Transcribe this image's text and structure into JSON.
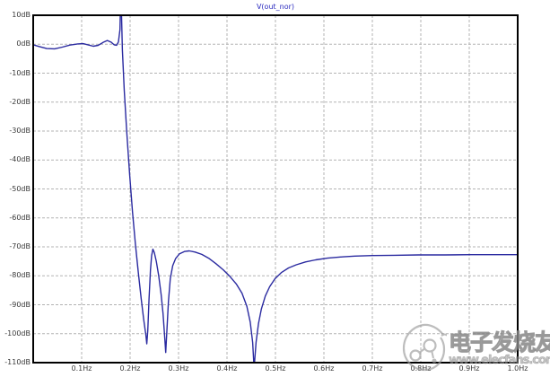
{
  "title": "V(out_nor)",
  "watermark": {
    "cn": "电子发烧友",
    "url": "www.elecfans.com",
    "logo": "elecfans-circle-logo",
    "color": "#999999"
  },
  "colors": {
    "curve": "#2a2aa0",
    "grid": "#b3b3b3",
    "frame": "#000000",
    "title": "#2a2abf",
    "tick_text": "#3a3a3a",
    "background": "#ffffff"
  },
  "chart_data": {
    "type": "line",
    "title": "V(out_nor)",
    "xlabel": "",
    "ylabel": "",
    "x_unit": "Hz",
    "y_unit": "dB",
    "xlim": [
      0.0,
      1.0
    ],
    "ylim": [
      -110,
      10
    ],
    "grid": true,
    "legend": "none",
    "x_tick_values": [
      0.1,
      0.2,
      0.3,
      0.4,
      0.5,
      0.6,
      0.7,
      0.8,
      0.9,
      1.0
    ],
    "x_tick_labels": [
      "0.1Hz",
      "0.2Hz",
      "0.3Hz",
      "0.4Hz",
      "0.5Hz",
      "0.6Hz",
      "0.7Hz",
      "0.8Hz",
      "0.9Hz",
      "1.0Hz"
    ],
    "y_tick_values": [
      10,
      0,
      -10,
      -20,
      -30,
      -40,
      -50,
      -60,
      -70,
      -80,
      -90,
      -100,
      -110
    ],
    "y_tick_labels": [
      "10dB",
      "0dB",
      "-10dB",
      "-20dB",
      "-30dB",
      "-40dB",
      "-50dB",
      "-60dB",
      "-70dB",
      "-80dB",
      "-90dB",
      "-100dB",
      "-110dB"
    ],
    "annotations": {
      "passband_ripple_db": 1.5,
      "peak_hz": 0.18,
      "notch_hz": [
        0.234,
        0.274,
        0.456
      ],
      "stopband_floor_db": -72.7
    },
    "series": [
      {
        "name": "V(out_nor)",
        "color": "#2a2aa0",
        "points": [
          [
            0.0,
            -0.2
          ],
          [
            0.012,
            -0.8
          ],
          [
            0.028,
            -1.5
          ],
          [
            0.044,
            -1.6
          ],
          [
            0.06,
            -1.0
          ],
          [
            0.076,
            -0.3
          ],
          [
            0.092,
            0.1
          ],
          [
            0.103,
            0.2
          ],
          [
            0.113,
            -0.2
          ],
          [
            0.124,
            -0.7
          ],
          [
            0.134,
            -0.4
          ],
          [
            0.144,
            0.6
          ],
          [
            0.153,
            1.3
          ],
          [
            0.161,
            0.7
          ],
          [
            0.167,
            -0.2
          ],
          [
            0.172,
            -0.4
          ],
          [
            0.176,
            0.8
          ],
          [
            0.179,
            5.0
          ],
          [
            0.18,
            12.0
          ],
          [
            0.182,
            12.0
          ],
          [
            0.184,
            -2.0
          ],
          [
            0.188,
            -16.0
          ],
          [
            0.193,
            -30.0
          ],
          [
            0.199,
            -45.0
          ],
          [
            0.205,
            -58.0
          ],
          [
            0.211,
            -69.0
          ],
          [
            0.217,
            -79.0
          ],
          [
            0.223,
            -88.0
          ],
          [
            0.228,
            -95.0
          ],
          [
            0.2325,
            -100.5
          ],
          [
            0.2345,
            -103.5
          ],
          [
            0.2365,
            -99.0
          ],
          [
            0.239,
            -88.0
          ],
          [
            0.242,
            -78.0
          ],
          [
            0.2445,
            -73.0
          ],
          [
            0.247,
            -70.8
          ],
          [
            0.25,
            -72.0
          ],
          [
            0.254,
            -75.0
          ],
          [
            0.259,
            -80.0
          ],
          [
            0.264,
            -86.5
          ],
          [
            0.268,
            -93.0
          ],
          [
            0.271,
            -100.0
          ],
          [
            0.2735,
            -106.5
          ],
          [
            0.276,
            -99.0
          ],
          [
            0.279,
            -89.0
          ],
          [
            0.283,
            -81.0
          ],
          [
            0.288,
            -76.5
          ],
          [
            0.294,
            -74.0
          ],
          [
            0.302,
            -72.4
          ],
          [
            0.312,
            -71.6
          ],
          [
            0.322,
            -71.4
          ],
          [
            0.334,
            -71.8
          ],
          [
            0.348,
            -72.6
          ],
          [
            0.362,
            -73.9
          ],
          [
            0.377,
            -75.8
          ],
          [
            0.392,
            -77.9
          ],
          [
            0.406,
            -80.2
          ],
          [
            0.419,
            -82.8
          ],
          [
            0.431,
            -86.0
          ],
          [
            0.441,
            -90.5
          ],
          [
            0.448,
            -96.0
          ],
          [
            0.453,
            -103.0
          ],
          [
            0.456,
            -112.0
          ],
          [
            0.46,
            -103.0
          ],
          [
            0.465,
            -96.5
          ],
          [
            0.471,
            -91.5
          ],
          [
            0.479,
            -87.0
          ],
          [
            0.488,
            -83.8
          ],
          [
            0.499,
            -81.0
          ],
          [
            0.512,
            -78.9
          ],
          [
            0.527,
            -77.3
          ],
          [
            0.543,
            -76.2
          ],
          [
            0.562,
            -75.2
          ],
          [
            0.583,
            -74.5
          ],
          [
            0.607,
            -73.9
          ],
          [
            0.634,
            -73.5
          ],
          [
            0.664,
            -73.2
          ],
          [
            0.7,
            -73.0
          ],
          [
            0.745,
            -72.9
          ],
          [
            0.795,
            -72.8
          ],
          [
            0.85,
            -72.8
          ],
          [
            0.905,
            -72.7
          ],
          [
            0.955,
            -72.7
          ],
          [
            1.0,
            -72.7
          ]
        ]
      }
    ]
  }
}
